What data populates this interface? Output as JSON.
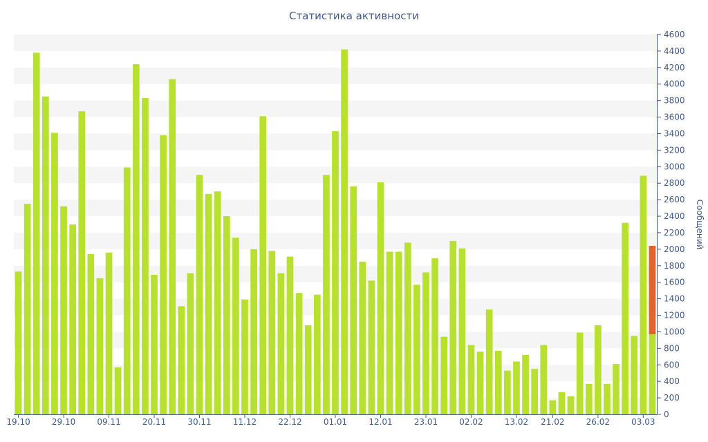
{
  "chart_data": {
    "type": "bar",
    "title": "Статистика активности",
    "ylabel": "Сообщений",
    "xlabel": "",
    "ylim": [
      0,
      4600
    ],
    "y_ticks": [
      0,
      200,
      400,
      600,
      800,
      1000,
      1200,
      1400,
      1600,
      1800,
      2000,
      2200,
      2400,
      2600,
      2800,
      3000,
      3200,
      3400,
      3600,
      3800,
      4000,
      4200,
      4400,
      4600
    ],
    "x_tick_labels": [
      {
        "label": "19.10",
        "index": 0
      },
      {
        "label": "29.10",
        "index": 5
      },
      {
        "label": "09.11",
        "index": 10
      },
      {
        "label": "20.11",
        "index": 15
      },
      {
        "label": "30.11",
        "index": 20
      },
      {
        "label": "11.12",
        "index": 25
      },
      {
        "label": "22.12",
        "index": 30
      },
      {
        "label": "01.01",
        "index": 35
      },
      {
        "label": "12.01",
        "index": 40
      },
      {
        "label": "23.01",
        "index": 45
      },
      {
        "label": "02.02",
        "index": 50
      },
      {
        "label": "13.02",
        "index": 55
      },
      {
        "label": "21.02",
        "index": 59
      },
      {
        "label": "26.02",
        "index": 64
      },
      {
        "label": "03.03",
        "index": 69
      }
    ],
    "y_axis_position": "right",
    "grid": "horizontal-bands",
    "colors": {
      "bar": "#b7e12e",
      "highlight": "#e4622c",
      "band": "#f5f5f5",
      "text": "#3e5a8c",
      "axis": "#3e5a8c"
    },
    "series": [
      {
        "values": [
          1730,
          2550,
          4380,
          3850,
          3410,
          2520,
          2300,
          3670,
          1940,
          1650,
          1960,
          570,
          2990,
          4240,
          3830,
          1690,
          3380,
          4060,
          1310,
          1710,
          2900,
          2670,
          2700,
          2400,
          2140,
          1390,
          2000,
          3610,
          1980,
          1710,
          1910,
          1470,
          1080,
          1450,
          2900,
          3430,
          4420,
          2760,
          1850,
          1620,
          2810,
          1970,
          1970,
          2080,
          1570,
          1720,
          1890,
          940,
          2100,
          2010,
          840,
          760,
          1270,
          770,
          530,
          640,
          720,
          550,
          840,
          170,
          270,
          220,
          990,
          370,
          1080,
          370,
          610,
          2320,
          950,
          2890,
          2040
        ],
        "highlight_range": [
          970,
          2040
        ]
      }
    ]
  }
}
